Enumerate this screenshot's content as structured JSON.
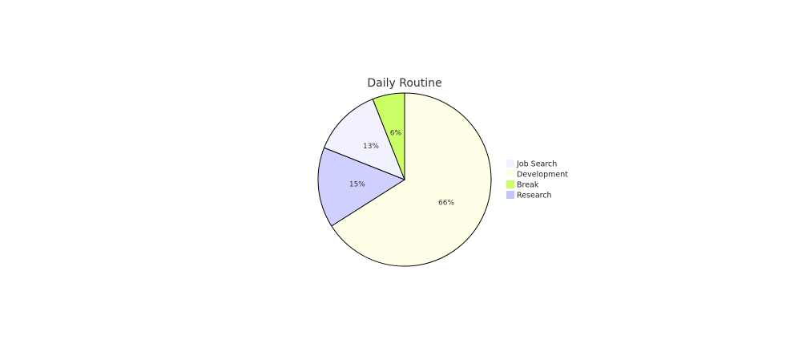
{
  "chart_data": {
    "type": "pie",
    "title": "Daily Routine",
    "slices": [
      {
        "label": "Development",
        "value": 66,
        "display": "66%",
        "color": "#ffffe8"
      },
      {
        "label": "Research",
        "value": 15,
        "display": "15%",
        "color": "#d0d0ff"
      },
      {
        "label": "Job Search",
        "value": 13,
        "display": "13%",
        "color": "#f2f2ff"
      },
      {
        "label": "Break",
        "value": 6,
        "display": "6%",
        "color": "#ccff66"
      }
    ],
    "legend": {
      "placement": "right",
      "items": [
        {
          "label": "Job Search",
          "color": "#f2f2ff"
        },
        {
          "label": "Development",
          "color": "#ffffe8"
        },
        {
          "label": "Break",
          "color": "#ccff66"
        },
        {
          "label": "Research",
          "color": "#c4c4ff"
        }
      ]
    },
    "stroke_color": "#000000"
  }
}
